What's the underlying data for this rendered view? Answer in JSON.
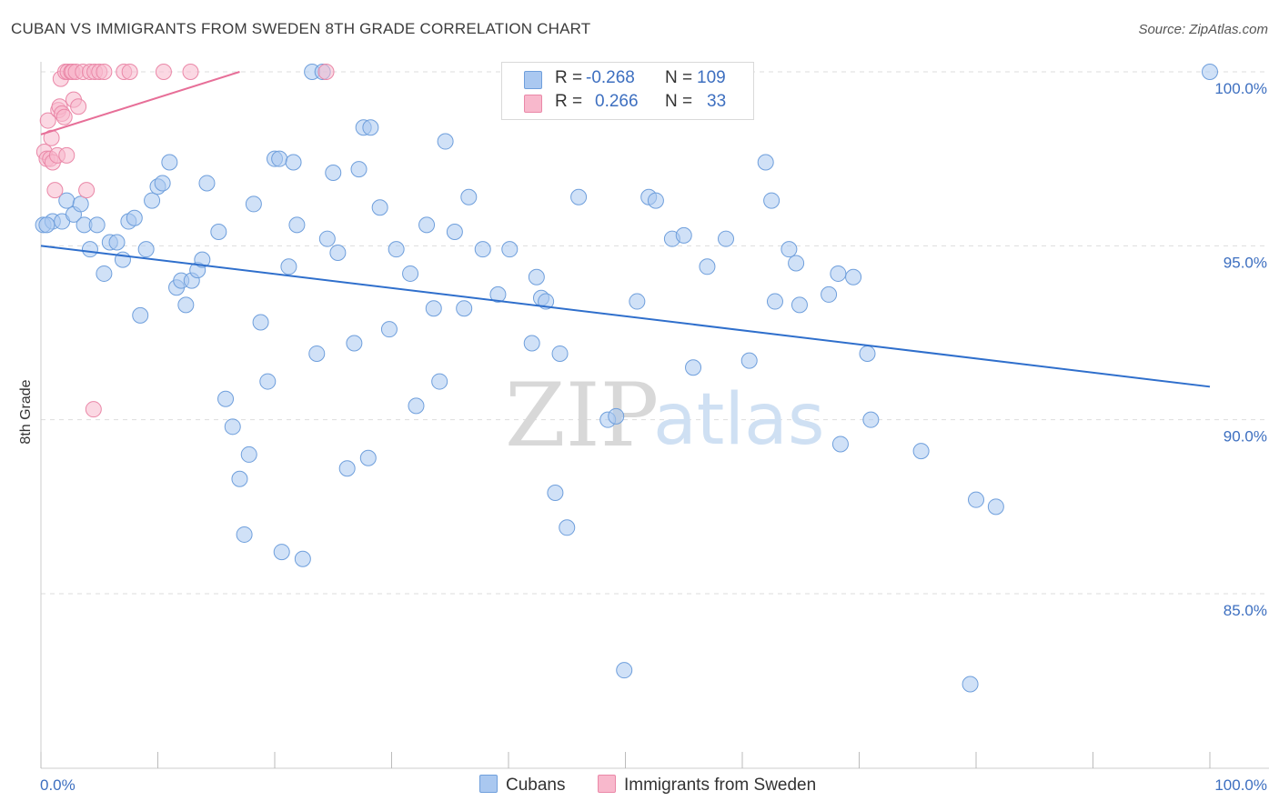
{
  "title": "CUBAN VS IMMIGRANTS FROM SWEDEN 8TH GRADE CORRELATION CHART",
  "source": "Source: ZipAtlas.com",
  "watermark": {
    "zip": "ZIP",
    "atlas": "atlas"
  },
  "legend": {
    "r_label": "R =",
    "n_label": "N =",
    "rows": [
      {
        "r": "-0.268",
        "n": "109"
      },
      {
        "r": "0.266",
        "n": "33"
      }
    ]
  },
  "bottom_legend": [
    {
      "label": "Cubans"
    },
    {
      "label": "Immigrants from Sweden"
    }
  ],
  "colors": {
    "blue_fill": "#aac8f0",
    "blue_stroke": "#6f9fdc",
    "blue_line": "#2f6fcc",
    "pink_fill": "#f8b8cc",
    "pink_stroke": "#ea88a8",
    "pink_line": "#e76f98",
    "axis_text": "#3d6fc0",
    "grid": "#dddddd"
  },
  "chart_data": {
    "type": "scatter",
    "title": "CUBAN VS IMMIGRANTS FROM SWEDEN 8TH GRADE CORRELATION CHART",
    "xlabel": "",
    "ylabel": "8th Grade",
    "xlim": [
      0,
      100
    ],
    "ylim": [
      80.5,
      100.5
    ],
    "x_tick_labels": [
      "0.0%",
      "100.0%"
    ],
    "y_ticks": [
      85,
      90,
      95,
      100
    ],
    "y_tick_labels": [
      "85.0%",
      "90.0%",
      "95.0%",
      "100.0%"
    ],
    "grid": true,
    "legend_placement": "top-center",
    "series": [
      {
        "name": "Cubans",
        "color": "#aac8f0",
        "trend": {
          "x": [
            0,
            100
          ],
          "y": [
            95.0,
            90.95
          ]
        },
        "points": [
          [
            0.2,
            95.6
          ],
          [
            1.0,
            95.7
          ],
          [
            1.8,
            95.7
          ],
          [
            2.2,
            96.3
          ],
          [
            2.8,
            95.9
          ],
          [
            3.4,
            96.2
          ],
          [
            3.7,
            95.6
          ],
          [
            4.2,
            94.9
          ],
          [
            4.8,
            95.6
          ],
          [
            5.4,
            94.2
          ],
          [
            5.9,
            95.1
          ],
          [
            6.5,
            95.1
          ],
          [
            7.0,
            94.6
          ],
          [
            7.5,
            95.7
          ],
          [
            8.0,
            95.8
          ],
          [
            8.5,
            93.0
          ],
          [
            9.0,
            94.9
          ],
          [
            9.5,
            96.3
          ],
          [
            10.0,
            96.7
          ],
          [
            10.4,
            96.8
          ],
          [
            11.0,
            97.4
          ],
          [
            11.6,
            93.8
          ],
          [
            12.0,
            94.0
          ],
          [
            12.4,
            93.3
          ],
          [
            12.9,
            94.0
          ],
          [
            13.4,
            94.3
          ],
          [
            13.8,
            94.6
          ],
          [
            14.2,
            96.8
          ],
          [
            15.2,
            95.4
          ],
          [
            15.8,
            90.6
          ],
          [
            16.4,
            89.8
          ],
          [
            17.0,
            88.3
          ],
          [
            17.4,
            86.7
          ],
          [
            17.8,
            89.0
          ],
          [
            18.2,
            96.2
          ],
          [
            18.8,
            92.8
          ],
          [
            19.4,
            91.1
          ],
          [
            20.0,
            97.5
          ],
          [
            20.4,
            97.5
          ],
          [
            20.6,
            86.2
          ],
          [
            21.2,
            94.4
          ],
          [
            21.6,
            97.4
          ],
          [
            21.9,
            95.6
          ],
          [
            22.4,
            86.0
          ],
          [
            23.2,
            100.0
          ],
          [
            23.6,
            91.9
          ],
          [
            24.1,
            100.0
          ],
          [
            24.5,
            95.2
          ],
          [
            25.0,
            97.1
          ],
          [
            25.4,
            94.8
          ],
          [
            26.2,
            88.6
          ],
          [
            26.8,
            92.2
          ],
          [
            27.2,
            97.2
          ],
          [
            27.6,
            98.4
          ],
          [
            28.2,
            98.4
          ],
          [
            28.0,
            88.9
          ],
          [
            29.0,
            96.1
          ],
          [
            29.8,
            92.6
          ],
          [
            30.4,
            94.9
          ],
          [
            31.6,
            94.2
          ],
          [
            32.1,
            90.4
          ],
          [
            33.0,
            95.6
          ],
          [
            33.6,
            93.2
          ],
          [
            34.1,
            91.1
          ],
          [
            34.6,
            98.0
          ],
          [
            35.4,
            95.4
          ],
          [
            36.2,
            93.2
          ],
          [
            36.6,
            96.4
          ],
          [
            37.8,
            94.9
          ],
          [
            39.1,
            93.6
          ],
          [
            40.1,
            94.9
          ],
          [
            42.0,
            92.2
          ],
          [
            42.4,
            94.1
          ],
          [
            42.8,
            93.5
          ],
          [
            43.2,
            93.4
          ],
          [
            44.0,
            87.9
          ],
          [
            44.4,
            91.9
          ],
          [
            45.0,
            86.9
          ],
          [
            46.0,
            96.4
          ],
          [
            48.5,
            90.0
          ],
          [
            49.2,
            90.1
          ],
          [
            49.9,
            82.8
          ],
          [
            51.0,
            93.4
          ],
          [
            52.0,
            96.4
          ],
          [
            52.6,
            96.3
          ],
          [
            54.0,
            95.2
          ],
          [
            55.0,
            95.3
          ],
          [
            55.8,
            91.5
          ],
          [
            57.0,
            94.4
          ],
          [
            58.6,
            95.2
          ],
          [
            60.6,
            91.7
          ],
          [
            62.0,
            97.4
          ],
          [
            62.5,
            96.3
          ],
          [
            62.8,
            93.4
          ],
          [
            64.0,
            94.9
          ],
          [
            64.6,
            94.5
          ],
          [
            64.9,
            93.3
          ],
          [
            67.4,
            93.6
          ],
          [
            68.2,
            94.2
          ],
          [
            68.4,
            89.3
          ],
          [
            69.5,
            94.1
          ],
          [
            70.7,
            91.9
          ],
          [
            71.0,
            90.0
          ],
          [
            75.3,
            89.1
          ],
          [
            80.0,
            87.7
          ],
          [
            79.5,
            82.4
          ],
          [
            81.7,
            87.5
          ],
          [
            100.0,
            100.0
          ],
          [
            0.5,
            95.6
          ]
        ]
      },
      {
        "name": "Immigrants from Sweden",
        "color": "#f8b8cc",
        "trend": {
          "x": [
            0,
            17
          ],
          "y": [
            98.2,
            100.0
          ]
        },
        "points": [
          [
            0.3,
            97.7
          ],
          [
            0.5,
            97.5
          ],
          [
            0.6,
            98.6
          ],
          [
            0.8,
            97.5
          ],
          [
            0.9,
            98.1
          ],
          [
            1.0,
            97.4
          ],
          [
            1.2,
            96.6
          ],
          [
            1.4,
            97.6
          ],
          [
            1.5,
            98.9
          ],
          [
            1.6,
            99.0
          ],
          [
            1.7,
            99.8
          ],
          [
            1.8,
            98.8
          ],
          [
            2.0,
            98.7
          ],
          [
            2.1,
            100.0
          ],
          [
            2.2,
            97.6
          ],
          [
            2.3,
            100.0
          ],
          [
            2.6,
            100.0
          ],
          [
            2.7,
            100.0
          ],
          [
            2.8,
            99.2
          ],
          [
            3.0,
            100.0
          ],
          [
            3.2,
            99.0
          ],
          [
            3.6,
            100.0
          ],
          [
            3.9,
            96.6
          ],
          [
            4.2,
            100.0
          ],
          [
            4.6,
            100.0
          ],
          [
            5.0,
            100.0
          ],
          [
            5.4,
            100.0
          ],
          [
            7.1,
            100.0
          ],
          [
            7.6,
            100.0
          ],
          [
            10.5,
            100.0
          ],
          [
            12.8,
            100.0
          ],
          [
            24.4,
            100.0
          ],
          [
            4.5,
            90.3
          ]
        ]
      }
    ]
  }
}
